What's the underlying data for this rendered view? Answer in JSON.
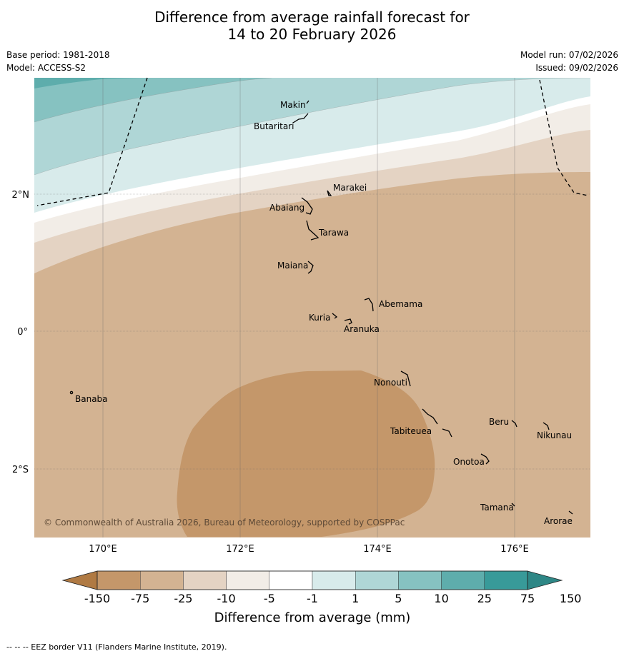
{
  "title": {
    "line1": "Difference from average rainfall forecast for",
    "line2": "14 to 20 February 2026"
  },
  "meta": {
    "base_period": "Base period: 1981-2018",
    "model": "Model: ACCESS-S2",
    "model_run": "Model run: 07/02/2026",
    "issued": "Issued: 09/02/2026"
  },
  "map": {
    "lon_labels": [
      "170°E",
      "172°E",
      "174°E",
      "176°E"
    ],
    "lat_labels": [
      "2°N",
      "0°",
      "2°S"
    ],
    "places": [
      "Makin",
      "Butaritari",
      "Marakei",
      "Abaiang",
      "Tarawa",
      "Maiana",
      "Abemama",
      "Kuria",
      "Aranuka",
      "Nonouti",
      "Banaba",
      "Beru",
      "Tabiteuea",
      "Nikunau",
      "Onotoa",
      "Tamana",
      "Arorae"
    ],
    "copyright": "© Commonwealth of Australia 2026, Bureau of Meteorology, supported by COSPPac"
  },
  "legend": {
    "ticks": [
      "-150",
      "-75",
      "-25",
      "-10",
      "-5",
      "-1",
      "1",
      "5",
      "10",
      "25",
      "75",
      "150"
    ],
    "label": "Difference from average (mm)",
    "colors": [
      "#b07a43",
      "#c4976a",
      "#d3b392",
      "#e4d3c3",
      "#f2ede7",
      "#ffffff",
      "#d8ebeb",
      "#afd6d6",
      "#86c2c1",
      "#5eadac",
      "#389a99",
      "#2e8786"
    ]
  },
  "footnote": "--  --  -- EEZ border V11 (Flanders Marine Institute, 2019)."
}
